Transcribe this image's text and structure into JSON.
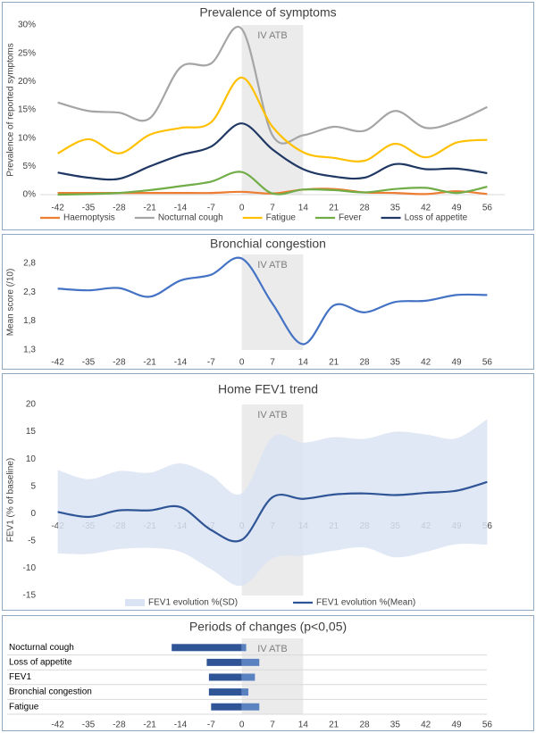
{
  "chart_data": [
    {
      "type": "line",
      "title": "Prevalence of symptoms",
      "y_label": "Prevalence of reported symptoms",
      "annotation": "IV ATB",
      "shade": [
        0,
        14
      ],
      "x": [
        -42,
        -35,
        -28,
        -21,
        -14,
        -7,
        0,
        7,
        14,
        21,
        28,
        35,
        42,
        49,
        56
      ],
      "xlim": [
        -46,
        60
      ],
      "xticks": [
        -42,
        -35,
        -28,
        -21,
        -14,
        -7,
        0,
        7,
        14,
        21,
        28,
        35,
        42,
        49,
        56
      ],
      "ylim": [
        0,
        30
      ],
      "yticks": [
        {
          "value": 0,
          "label": "0%"
        },
        {
          "value": 5,
          "label": "5%"
        },
        {
          "value": 10,
          "label": "10%"
        },
        {
          "value": 15,
          "label": "15%"
        },
        {
          "value": 20,
          "label": "20%"
        },
        {
          "value": 25,
          "label": "25%"
        },
        {
          "value": 30,
          "label": "30%"
        }
      ],
      "series": [
        {
          "name": "Haemoptysis",
          "color": "#ed7d31",
          "values": [
            0.3,
            0.3,
            0.3,
            0.3,
            0.3,
            0.3,
            0.5,
            0.2,
            0.9,
            1.0,
            0.4,
            0.3,
            0.1,
            0.6,
            0.1
          ]
        },
        {
          "name": "Nocturnal cough",
          "color": "#a5a5a5",
          "values": [
            16.3,
            14.8,
            14.5,
            13.5,
            22.5,
            23.2,
            29.3,
            10.5,
            10.5,
            12,
            11.3,
            14.8,
            11.8,
            13,
            15.5
          ]
        },
        {
          "name": "Fatigue",
          "color": "#ffc000",
          "values": [
            7.3,
            9.8,
            7.3,
            10.6,
            11.8,
            12.8,
            20.7,
            12,
            7.5,
            6.5,
            6,
            9,
            6.6,
            9.2,
            9.7
          ]
        },
        {
          "name": "Fever",
          "color": "#70ad47",
          "values": [
            0,
            0.1,
            0.3,
            0.8,
            1.5,
            2.3,
            4,
            0.2,
            0.9,
            0.8,
            0.4,
            1,
            1.2,
            0.3,
            1.4
          ]
        },
        {
          "name": "Loss of appetite",
          "color": "#203864",
          "values": [
            3.9,
            3,
            2.8,
            5,
            7,
            8.5,
            12.6,
            8,
            4.5,
            3.2,
            3,
            5.4,
            4.5,
            4.6,
            3.8
          ]
        }
      ]
    },
    {
      "type": "line",
      "title": "Bronchial congestion",
      "y_label": "Mean score (/10)",
      "annotation": "IV ATB",
      "shade": [
        0,
        14
      ],
      "x": [
        -42,
        -35,
        -28,
        -21,
        -14,
        -7,
        0,
        7,
        14,
        21,
        28,
        35,
        42,
        49,
        56
      ],
      "xlim": [
        -46,
        60
      ],
      "xticks": [
        -42,
        -35,
        -28,
        -21,
        -14,
        -7,
        0,
        7,
        14,
        21,
        28,
        35,
        42,
        49,
        56
      ],
      "ylim": [
        1.3,
        2.95
      ],
      "yticks": [
        {
          "value": 1.3,
          "label": "1,3"
        },
        {
          "value": 1.8,
          "label": "1,8"
        },
        {
          "value": 2.3,
          "label": "2,3"
        },
        {
          "value": 2.8,
          "label": "2,8"
        }
      ],
      "series": [
        {
          "color": "#4472c4",
          "values": [
            2.36,
            2.33,
            2.37,
            2.22,
            2.5,
            2.6,
            2.88,
            2.1,
            1.4,
            2.07,
            1.95,
            2.13,
            2.15,
            2.25,
            2.25
          ]
        }
      ]
    },
    {
      "type": "line",
      "title": "Home FEV1 trend",
      "y_label": "FEV1 (% of baseline)",
      "annotation": "IV ATB",
      "shade": [
        0,
        14
      ],
      "x": [
        -42,
        -35,
        -28,
        -21,
        -14,
        -7,
        0,
        7,
        14,
        21,
        28,
        35,
        42,
        49,
        56
      ],
      "xlim": [
        -46,
        60
      ],
      "xticks": [
        -42,
        -35,
        -28,
        -21,
        -14,
        -7,
        0,
        7,
        14,
        21,
        28,
        35,
        42,
        49,
        56
      ],
      "ylim": [
        -15,
        20
      ],
      "yticks": [
        -15,
        -10,
        -5,
        0,
        5,
        10,
        15,
        20
      ],
      "series": [
        {
          "name": "FEV1 evolution %(SD)",
          "color": "#dae3f3",
          "kind": "band",
          "values": [
            8,
            6.3,
            7.8,
            7.5,
            9.2,
            7,
            3.7,
            14,
            13,
            14,
            13.7,
            15,
            14.5,
            13.8,
            17.3
          ],
          "low": [
            -7.3,
            -7.4,
            -6.5,
            -6.3,
            -7,
            -10.2,
            -13.2,
            -8.2,
            -7.7,
            -6.8,
            -6.2,
            -8,
            -7,
            -5.6,
            -5.7
          ]
        },
        {
          "name": "FEV1 evolution %(Mean)",
          "color": "#2f5597",
          "values": [
            0.3,
            -0.6,
            0.6,
            0.6,
            1.2,
            -3,
            -4.8,
            3,
            2.7,
            3.5,
            3.7,
            3.4,
            3.8,
            4.2,
            5.8
          ]
        }
      ]
    },
    {
      "type": "range-bar",
      "title": "Periods of changes (p<0,05)",
      "annotation": "IV ATB",
      "shade": [
        0,
        14
      ],
      "categories": [
        "Nocturnal cough",
        "Loss of appetite",
        "FEV1",
        "Bronchial congestion",
        "Fatigue"
      ],
      "xlim": [
        -46,
        60
      ],
      "xticks": [
        -42,
        -35,
        -28,
        -21,
        -14,
        -7,
        0,
        7,
        14,
        21,
        28,
        35,
        42,
        49,
        56
      ],
      "series": [
        {
          "color": "#2f5597",
          "start": [
            -16,
            -8,
            -7.5,
            -7.5,
            -7
          ],
          "end": [
            0,
            0,
            0,
            0,
            0
          ]
        },
        {
          "color": "#5b82c0",
          "start": [
            0,
            0,
            0,
            0,
            0
          ],
          "end": [
            1,
            4,
            3,
            1.5,
            4
          ]
        }
      ]
    }
  ]
}
